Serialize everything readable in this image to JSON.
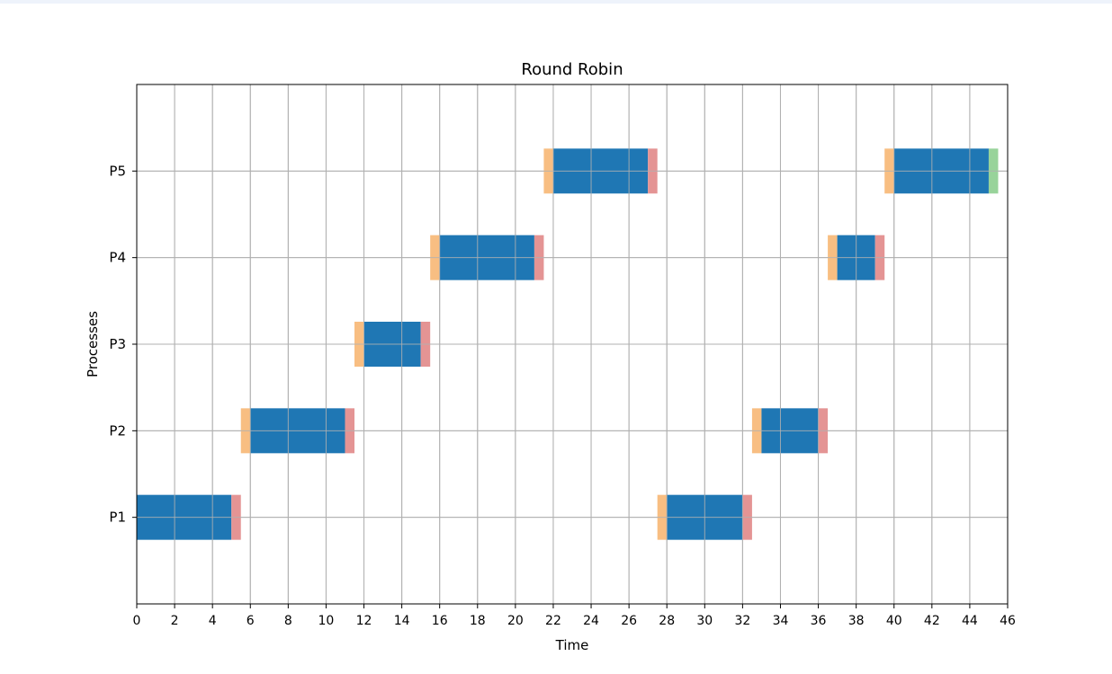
{
  "chart_data": {
    "type": "gantt",
    "title": "Round Robin",
    "xlabel": "Time",
    "ylabel": "Processes",
    "xlim": [
      0,
      46
    ],
    "ylim": [
      0,
      6
    ],
    "xticks": [
      0,
      2,
      4,
      6,
      8,
      10,
      12,
      14,
      16,
      18,
      20,
      22,
      24,
      26,
      28,
      30,
      32,
      34,
      36,
      38,
      40,
      42,
      44,
      46
    ],
    "categories": [
      "P1",
      "P2",
      "P3",
      "P4",
      "P5"
    ],
    "grid": true,
    "colors": {
      "run": "#1f77b4",
      "before": "#f8be82",
      "after": "#e49494",
      "end": "#98d39a",
      "grid": "#b0b0b0",
      "axis": "#000000"
    },
    "segments": [
      {
        "process": "P1",
        "kind": "run",
        "start": 0,
        "end": 5
      },
      {
        "process": "P1",
        "kind": "after",
        "start": 5,
        "end": 5.5
      },
      {
        "process": "P2",
        "kind": "before",
        "start": 5.5,
        "end": 6
      },
      {
        "process": "P2",
        "kind": "run",
        "start": 6,
        "end": 11
      },
      {
        "process": "P2",
        "kind": "after",
        "start": 11,
        "end": 11.5
      },
      {
        "process": "P3",
        "kind": "before",
        "start": 11.5,
        "end": 12
      },
      {
        "process": "P3",
        "kind": "run",
        "start": 12,
        "end": 15
      },
      {
        "process": "P3",
        "kind": "after",
        "start": 15,
        "end": 15.5
      },
      {
        "process": "P4",
        "kind": "before",
        "start": 15.5,
        "end": 16
      },
      {
        "process": "P4",
        "kind": "run",
        "start": 16,
        "end": 21
      },
      {
        "process": "P4",
        "kind": "after",
        "start": 21,
        "end": 21.5
      },
      {
        "process": "P5",
        "kind": "before",
        "start": 21.5,
        "end": 22
      },
      {
        "process": "P5",
        "kind": "run",
        "start": 22,
        "end": 27
      },
      {
        "process": "P5",
        "kind": "after",
        "start": 27,
        "end": 27.5
      },
      {
        "process": "P1",
        "kind": "before",
        "start": 27.5,
        "end": 28
      },
      {
        "process": "P1",
        "kind": "run",
        "start": 28,
        "end": 32
      },
      {
        "process": "P1",
        "kind": "after",
        "start": 32,
        "end": 32.5
      },
      {
        "process": "P2",
        "kind": "before",
        "start": 32.5,
        "end": 33
      },
      {
        "process": "P2",
        "kind": "run",
        "start": 33,
        "end": 36
      },
      {
        "process": "P2",
        "kind": "after",
        "start": 36,
        "end": 36.5
      },
      {
        "process": "P4",
        "kind": "before",
        "start": 36.5,
        "end": 37
      },
      {
        "process": "P4",
        "kind": "run",
        "start": 37,
        "end": 39
      },
      {
        "process": "P4",
        "kind": "after",
        "start": 39,
        "end": 39.5
      },
      {
        "process": "P5",
        "kind": "before",
        "start": 39.5,
        "end": 40
      },
      {
        "process": "P5",
        "kind": "run",
        "start": 40,
        "end": 45
      },
      {
        "process": "P5",
        "kind": "end",
        "start": 45,
        "end": 45.5
      }
    ]
  }
}
